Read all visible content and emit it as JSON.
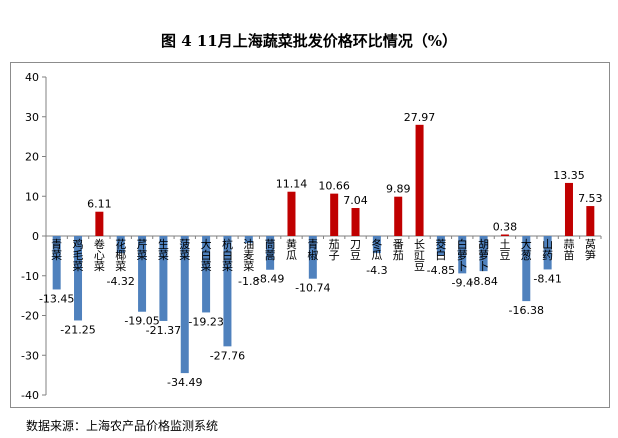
{
  "title": "图 4    11月上海蔬菜批发价格环比情况（%）",
  "source": "数据来源：上海农产品价格监测系统",
  "colors": {
    "negative": "#4f81bd",
    "positive": "#c00000",
    "axis": "#808080",
    "text": "#000000"
  },
  "chart_data": {
    "type": "bar",
    "title": "图 4    11月上海蔬菜批发价格环比情况（%）",
    "xlabel": "",
    "ylabel": "",
    "ylim": [
      -40,
      40
    ],
    "yticks": [
      40,
      30,
      20,
      10,
      0,
      -10,
      -20,
      -30,
      -40
    ],
    "grid": false,
    "categories": [
      "青菜",
      "鸡毛菜",
      "卷心菜",
      "花椰菜",
      "芹菜",
      "生菜",
      "菠菜",
      "大白菜",
      "杭白菜",
      "油麦菜",
      "茼蒿",
      "黄瓜",
      "青椒",
      "茄子",
      "刀豆",
      "冬瓜",
      "番茄",
      "长豇豆",
      "茭白",
      "白萝卜",
      "胡萝卜",
      "土豆",
      "大葱",
      "山药",
      "蒜苗",
      "莴笋"
    ],
    "values": [
      -13.45,
      -21.25,
      6.11,
      -4.32,
      -19.05,
      -21.37,
      -34.49,
      -19.23,
      -27.76,
      -1.8,
      -8.49,
      11.14,
      -10.74,
      10.66,
      7.04,
      -4.3,
      9.89,
      27.97,
      -4.85,
      -9.4,
      -8.84,
      0.38,
      -16.38,
      -8.41,
      13.35,
      7.53
    ],
    "labels": [
      "-13.45",
      "-21.25",
      "6.11",
      "-4.32",
      "-19.05",
      "-21.37",
      "-34.49",
      "-19.23",
      "-27.76",
      "-1.8",
      "-8.49",
      "11.14",
      "-10.74",
      "10.66",
      "7.04",
      "-4.3",
      "9.89",
      "27.97",
      "-4.85",
      "-9.4",
      "-8.84",
      "0.38",
      "-16.38",
      "-8.41",
      "13.35",
      "7.53"
    ]
  }
}
